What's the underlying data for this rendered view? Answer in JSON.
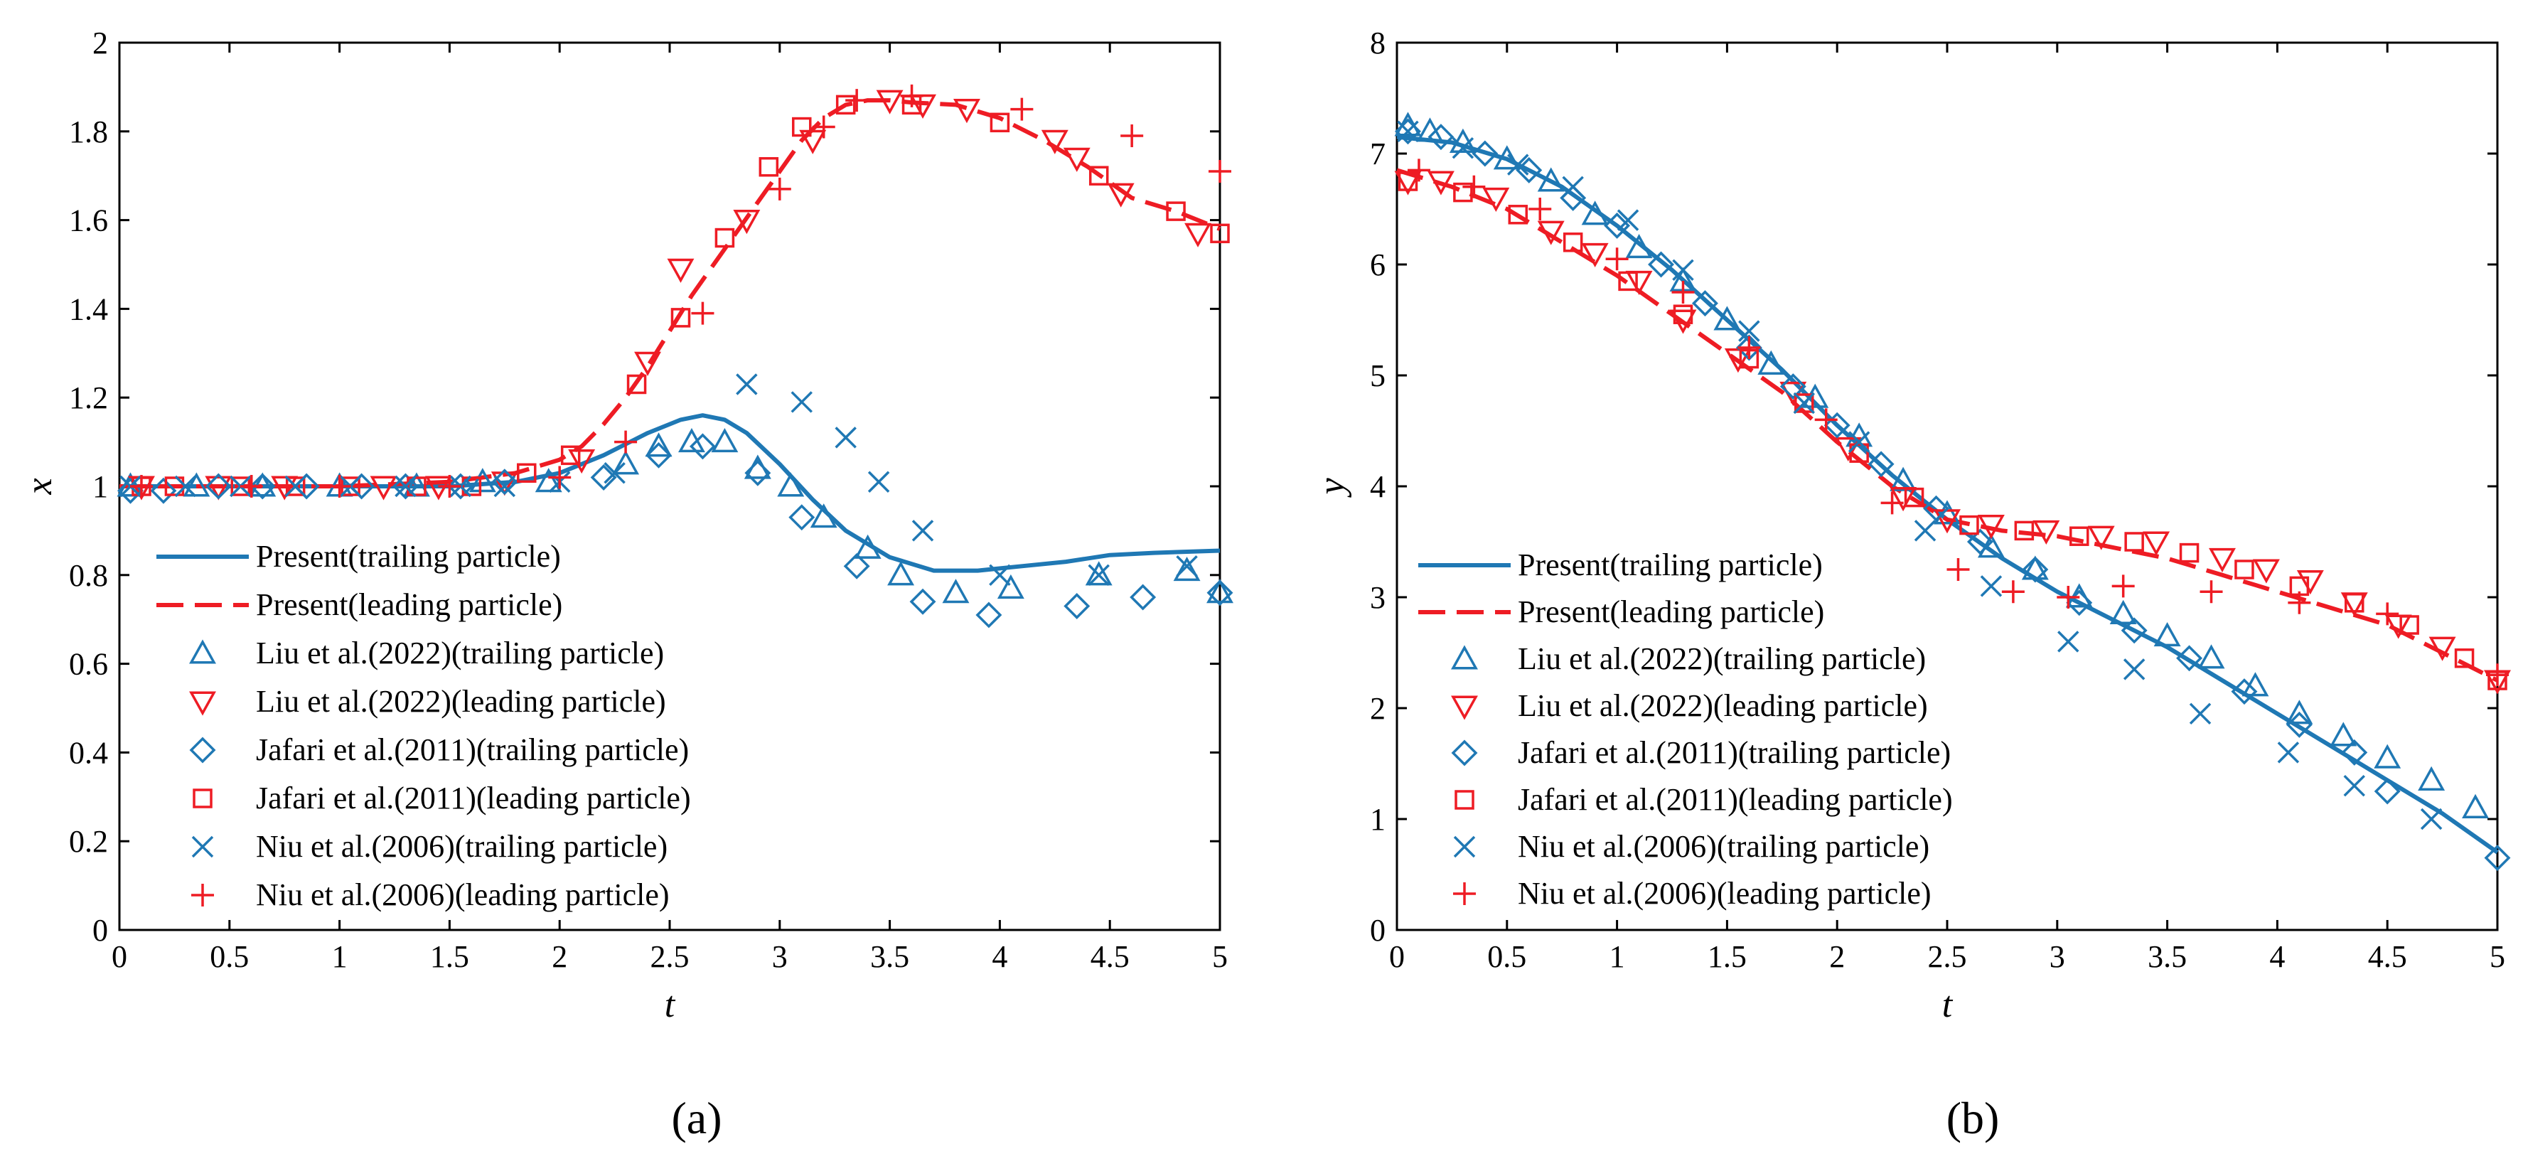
{
  "colors": {
    "trailing": "#1f78b4",
    "leading": "#ee1c24",
    "axis": "#000000"
  },
  "legend": [
    {
      "label": "Present(trailing particle)",
      "kind": "line-solid",
      "group": "trailing"
    },
    {
      "label": "Present(leading particle)",
      "kind": "line-dashed",
      "group": "leading"
    },
    {
      "label": "Liu et al.(2022)(trailing particle)",
      "kind": "triangle-up",
      "group": "trailing"
    },
    {
      "label": "Liu et al.(2022)(leading particle)",
      "kind": "triangle-down",
      "group": "leading"
    },
    {
      "label": "Jafari et al.(2011)(trailing particle)",
      "kind": "diamond",
      "group": "trailing"
    },
    {
      "label": "Jafari et al.(2011)(leading particle)",
      "kind": "square",
      "group": "leading"
    },
    {
      "label": "Niu et al.(2006)(trailing particle)",
      "kind": "cross",
      "group": "trailing"
    },
    {
      "label": "Niu et al.(2006)(leading particle)",
      "kind": "plus",
      "group": "leading"
    }
  ],
  "chart_data": [
    {
      "type": "line",
      "caption": "(a)",
      "xlabel": "t",
      "ylabel": "x",
      "xlim": [
        0,
        5
      ],
      "ylim": [
        0,
        2
      ],
      "xticks": [
        0,
        0.5,
        1,
        1.5,
        2,
        2.5,
        3,
        3.5,
        4,
        4.5,
        5
      ],
      "xtick_labels": [
        "0",
        "0.5",
        "1",
        "1.5",
        "2",
        "2.5",
        "3",
        "3.5",
        "4",
        "4.5",
        "5"
      ],
      "yticks": [
        0,
        0.2,
        0.4,
        0.6,
        0.8,
        1,
        1.2,
        1.4,
        1.6,
        1.8,
        2
      ],
      "ytick_labels": [
        "0",
        "0.2",
        "0.4",
        "0.6",
        "0.8",
        "1",
        "1.2",
        "1.4",
        "1.6",
        "1.8",
        "2"
      ],
      "legend_position": "bottom-left",
      "series": [
        {
          "name": "Present(trailing particle)",
          "kind": "line-solid",
          "group": "trailing",
          "x": [
            0,
            0.5,
            1,
            1.5,
            1.8,
            2.0,
            2.2,
            2.4,
            2.55,
            2.65,
            2.75,
            2.85,
            3.0,
            3.15,
            3.3,
            3.5,
            3.7,
            3.9,
            4.1,
            4.3,
            4.5,
            4.7,
            5.0
          ],
          "y": [
            1.0,
            1.0,
            1.0,
            1.0,
            1.01,
            1.03,
            1.07,
            1.12,
            1.15,
            1.16,
            1.15,
            1.12,
            1.05,
            0.97,
            0.9,
            0.84,
            0.81,
            0.81,
            0.82,
            0.83,
            0.845,
            0.85,
            0.855
          ]
        },
        {
          "name": "Present(leading particle)",
          "kind": "line-dashed",
          "group": "leading",
          "x": [
            0,
            1,
            1.5,
            1.8,
            2.0,
            2.1,
            2.2,
            2.3,
            2.4,
            2.5,
            2.6,
            2.7,
            2.8,
            2.9,
            3.0,
            3.1,
            3.2,
            3.3,
            3.4,
            3.5,
            3.6,
            3.8,
            4.0,
            4.2,
            4.4,
            4.6,
            4.8,
            5.0
          ],
          "y": [
            1.0,
            1.0,
            1.01,
            1.03,
            1.06,
            1.09,
            1.14,
            1.2,
            1.27,
            1.35,
            1.43,
            1.5,
            1.57,
            1.64,
            1.71,
            1.78,
            1.83,
            1.86,
            1.87,
            1.87,
            1.865,
            1.86,
            1.83,
            1.78,
            1.72,
            1.65,
            1.62,
            1.58
          ]
        },
        {
          "name": "Liu et al.(2022)(trailing particle)",
          "kind": "triangle-up",
          "group": "trailing",
          "x": [
            0.05,
            0.35,
            0.65,
            1.0,
            1.35,
            1.65,
            1.95,
            2.3,
            2.45,
            2.6,
            2.75,
            2.9,
            3.05,
            3.2,
            3.4,
            3.55,
            3.8,
            4.05,
            4.45,
            4.85,
            5.0
          ],
          "y": [
            1.0,
            1.0,
            1.0,
            1.0,
            1.0,
            1.01,
            1.01,
            1.05,
            1.09,
            1.1,
            1.1,
            1.04,
            1.0,
            0.93,
            0.86,
            0.8,
            0.76,
            0.77,
            0.8,
            0.81,
            0.76
          ]
        },
        {
          "name": "Liu et al.(2022)(leading particle)",
          "kind": "triangle-down",
          "group": "leading",
          "x": [
            0.1,
            0.45,
            0.75,
            1.2,
            1.45,
            1.75,
            2.1,
            2.4,
            2.55,
            2.85,
            3.15,
            3.5,
            3.65,
            3.85,
            4.25,
            4.35,
            4.55,
            4.9
          ],
          "y": [
            1.0,
            1.0,
            1.0,
            1.0,
            1.0,
            1.01,
            1.06,
            1.28,
            1.49,
            1.6,
            1.78,
            1.87,
            1.86,
            1.85,
            1.78,
            1.74,
            1.66,
            1.57
          ]
        },
        {
          "name": "Jafari et al.(2011)(trailing particle)",
          "kind": "diamond",
          "group": "trailing",
          "x": [
            0.05,
            0.2,
            0.45,
            0.65,
            0.85,
            1.1,
            1.3,
            1.55,
            1.75,
            2.2,
            2.45,
            2.65,
            2.9,
            3.1,
            3.35,
            3.65,
            3.95,
            4.35,
            4.65,
            5.0
          ],
          "y": [
            0.99,
            0.99,
            1.0,
            1.0,
            1.0,
            1.0,
            1.0,
            1.0,
            1.01,
            1.02,
            1.07,
            1.09,
            1.03,
            0.93,
            0.82,
            0.74,
            0.71,
            0.73,
            0.75,
            0.76
          ]
        },
        {
          "name": "Jafari et al.(2011)(leading particle)",
          "kind": "square",
          "group": "leading",
          "x": [
            0.1,
            0.25,
            0.55,
            0.8,
            1.05,
            1.35,
            1.6,
            1.85,
            2.05,
            2.35,
            2.55,
            2.75,
            2.95,
            3.1,
            3.3,
            3.6,
            4.0,
            4.45,
            4.8,
            5.0
          ],
          "y": [
            1.0,
            1.0,
            1.0,
            1.0,
            1.0,
            1.0,
            1.0,
            1.03,
            1.07,
            1.23,
            1.38,
            1.56,
            1.72,
            1.81,
            1.86,
            1.86,
            1.82,
            1.7,
            1.62,
            1.57
          ]
        },
        {
          "name": "Niu et al.(2006)(trailing particle)",
          "kind": "cross",
          "group": "trailing",
          "x": [
            0.05,
            0.3,
            0.55,
            0.8,
            1.05,
            1.3,
            1.55,
            1.75,
            2.0,
            2.25,
            2.85,
            3.1,
            3.3,
            3.45,
            3.65,
            4.0,
            4.45,
            4.85
          ],
          "y": [
            1.0,
            1.0,
            1.0,
            1.0,
            1.0,
            1.0,
            1.0,
            1.0,
            1.01,
            1.03,
            1.23,
            1.19,
            1.11,
            1.01,
            0.9,
            0.8,
            0.8,
            0.82
          ]
        },
        {
          "name": "Niu et al.(2006)(leading particle)",
          "kind": "plus",
          "group": "leading",
          "x": [
            0.1,
            0.6,
            1.0,
            1.5,
            2.0,
            2.3,
            2.65,
            3.0,
            3.2,
            3.35,
            3.6,
            4.1,
            4.6,
            5.0
          ],
          "y": [
            1.0,
            1.0,
            1.0,
            1.0,
            1.02,
            1.1,
            1.39,
            1.67,
            1.81,
            1.87,
            1.88,
            1.85,
            1.79,
            1.71
          ]
        }
      ]
    },
    {
      "type": "line",
      "caption": "(b)",
      "xlabel": "t",
      "ylabel": "y",
      "xlim": [
        0,
        5
      ],
      "ylim": [
        0,
        8
      ],
      "xticks": [
        0,
        0.5,
        1,
        1.5,
        2,
        2.5,
        3,
        3.5,
        4,
        4.5,
        5
      ],
      "xtick_labels": [
        "0",
        "0.5",
        "1",
        "1.5",
        "2",
        "2.5",
        "3",
        "3.5",
        "4",
        "4.5",
        "5"
      ],
      "yticks": [
        0,
        1,
        2,
        3,
        4,
        5,
        6,
        7,
        8
      ],
      "ytick_labels": [
        "0",
        "1",
        "2",
        "3",
        "4",
        "5",
        "6",
        "7",
        "8"
      ],
      "legend_position": "bottom-left",
      "series": [
        {
          "name": "Present(trailing particle)",
          "kind": "line-solid",
          "group": "trailing",
          "x": [
            0,
            0.25,
            0.5,
            0.75,
            1.0,
            1.25,
            1.5,
            1.75,
            2.0,
            2.25,
            2.5,
            2.75,
            3.0,
            3.25,
            3.5,
            3.75,
            4.0,
            4.25,
            4.5,
            4.75,
            5.0
          ],
          "y": [
            7.15,
            7.1,
            6.95,
            6.7,
            6.35,
            5.95,
            5.5,
            5.05,
            4.55,
            4.1,
            3.7,
            3.35,
            3.05,
            2.8,
            2.55,
            2.25,
            1.95,
            1.65,
            1.35,
            1.05,
            0.7
          ]
        },
        {
          "name": "Present(leading particle)",
          "kind": "line-dashed",
          "group": "leading",
          "x": [
            0,
            0.25,
            0.5,
            0.75,
            1.0,
            1.25,
            1.5,
            1.75,
            2.0,
            2.25,
            2.5,
            2.75,
            3.0,
            3.25,
            3.5,
            3.75,
            4.0,
            4.25,
            4.5,
            4.75,
            5.0
          ],
          "y": [
            6.85,
            6.7,
            6.5,
            6.2,
            5.9,
            5.55,
            5.2,
            4.85,
            4.4,
            4.0,
            3.7,
            3.6,
            3.55,
            3.45,
            3.35,
            3.2,
            3.05,
            2.9,
            2.75,
            2.5,
            2.25
          ]
        },
        {
          "name": "Liu et al.(2022)(trailing particle)",
          "kind": "triangle-up",
          "group": "trailing",
          "x": [
            0.05,
            0.15,
            0.3,
            0.5,
            0.7,
            0.9,
            1.1,
            1.3,
            1.5,
            1.7,
            1.9,
            2.1,
            2.3,
            2.5,
            2.7,
            2.9,
            3.1,
            3.3,
            3.5,
            3.7,
            3.9,
            4.1,
            4.3,
            4.5,
            4.7,
            4.9
          ],
          "y": [
            7.25,
            7.2,
            7.1,
            6.95,
            6.75,
            6.45,
            6.15,
            5.85,
            5.5,
            5.1,
            4.8,
            4.45,
            4.05,
            3.75,
            3.45,
            3.25,
            3.0,
            2.85,
            2.65,
            2.45,
            2.2,
            1.95,
            1.75,
            1.55,
            1.35,
            1.1
          ]
        },
        {
          "name": "Liu et al.(2022)(leading particle)",
          "kind": "triangle-down",
          "group": "leading",
          "x": [
            0.05,
            0.2,
            0.45,
            0.7,
            0.9,
            1.1,
            1.3,
            1.55,
            1.8,
            2.05,
            2.3,
            2.5,
            2.7,
            2.95,
            3.2,
            3.45,
            3.75,
            3.95,
            4.15,
            4.35,
            4.55,
            4.75,
            5.0
          ],
          "y": [
            6.75,
            6.75,
            6.6,
            6.3,
            6.1,
            5.85,
            5.5,
            5.15,
            4.85,
            4.35,
            3.9,
            3.7,
            3.65,
            3.6,
            3.55,
            3.5,
            3.35,
            3.25,
            3.15,
            2.95,
            2.75,
            2.55,
            2.25
          ]
        },
        {
          "name": "Jafari et al.(2011)(trailing particle)",
          "kind": "diamond",
          "group": "trailing",
          "x": [
            0.05,
            0.2,
            0.4,
            0.6,
            0.8,
            1.0,
            1.2,
            1.4,
            1.6,
            1.8,
            2.0,
            2.2,
            2.45,
            2.65,
            2.9,
            3.1,
            3.35,
            3.6,
            3.85,
            4.1,
            4.35,
            4.5,
            5.0
          ],
          "y": [
            7.2,
            7.15,
            7.0,
            6.85,
            6.6,
            6.35,
            6.0,
            5.65,
            5.25,
            4.9,
            4.55,
            4.2,
            3.8,
            3.5,
            3.25,
            2.95,
            2.7,
            2.45,
            2.15,
            1.85,
            1.6,
            1.25,
            0.65
          ]
        },
        {
          "name": "Jafari et al.(2011)(leading particle)",
          "kind": "square",
          "group": "leading",
          "x": [
            0.05,
            0.3,
            0.55,
            0.8,
            1.05,
            1.3,
            1.6,
            1.85,
            2.1,
            2.35,
            2.6,
            2.85,
            3.1,
            3.35,
            3.6,
            3.85,
            4.1,
            4.35,
            4.6,
            4.85,
            5.0
          ],
          "y": [
            6.75,
            6.65,
            6.45,
            6.2,
            5.85,
            5.55,
            5.15,
            4.75,
            4.3,
            3.9,
            3.65,
            3.6,
            3.55,
            3.5,
            3.4,
            3.25,
            3.1,
            2.95,
            2.75,
            2.45,
            2.25
          ]
        },
        {
          "name": "Niu et al.(2006)(trailing particle)",
          "kind": "cross",
          "group": "trailing",
          "x": [
            0.05,
            0.3,
            0.55,
            0.8,
            1.05,
            1.3,
            1.6,
            1.85,
            2.1,
            2.4,
            2.7,
            3.05,
            3.35,
            3.65,
            4.05,
            4.35,
            4.7
          ],
          "y": [
            7.2,
            7.05,
            6.9,
            6.7,
            6.4,
            5.95,
            5.4,
            4.75,
            4.4,
            3.6,
            3.1,
            2.6,
            2.35,
            1.95,
            1.6,
            1.3,
            1.0
          ]
        },
        {
          "name": "Niu et al.(2006)(leading particle)",
          "kind": "plus",
          "group": "leading",
          "x": [
            0.1,
            0.35,
            0.65,
            1.0,
            1.3,
            1.6,
            1.95,
            2.25,
            2.55,
            2.8,
            3.05,
            3.3,
            3.7,
            4.1,
            4.5,
            5.0
          ],
          "y": [
            6.85,
            6.7,
            6.5,
            6.05,
            5.75,
            5.25,
            4.6,
            3.85,
            3.25,
            3.05,
            3.0,
            3.1,
            3.05,
            2.95,
            2.85,
            2.3
          ]
        }
      ]
    }
  ]
}
